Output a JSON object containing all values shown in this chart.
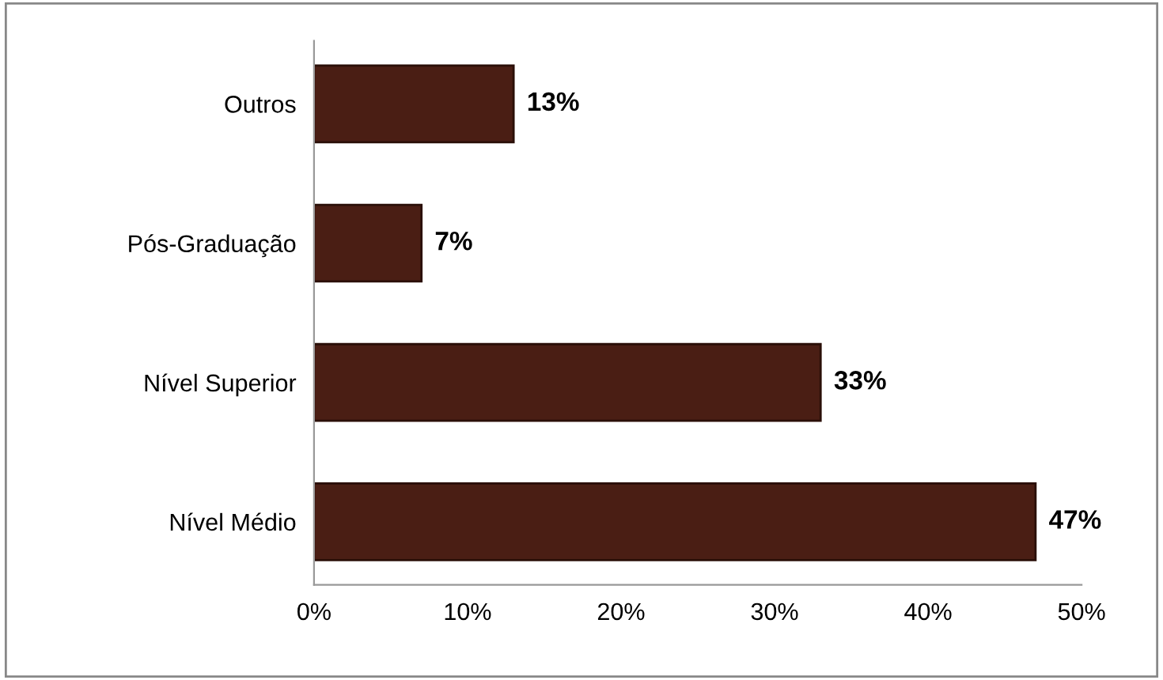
{
  "chart_data": {
    "type": "bar",
    "orientation": "horizontal",
    "categories": [
      "Outros",
      "Pós-Graduação",
      "Nível Superior",
      "Nível Médio"
    ],
    "values": [
      13,
      7,
      33,
      47
    ],
    "value_labels": [
      "13%",
      "7%",
      "33%",
      "47%"
    ],
    "color": "#4a1e14",
    "xlim": [
      0,
      50
    ],
    "xticks": [
      {
        "value": 0,
        "label": "0%"
      },
      {
        "value": 10,
        "label": "10%"
      },
      {
        "value": 20,
        "label": "20%"
      },
      {
        "value": 30,
        "label": "30%"
      },
      {
        "value": 40,
        "label": "40%"
      },
      {
        "value": 50,
        "label": "50%"
      }
    ],
    "grid": false,
    "legend": false
  }
}
